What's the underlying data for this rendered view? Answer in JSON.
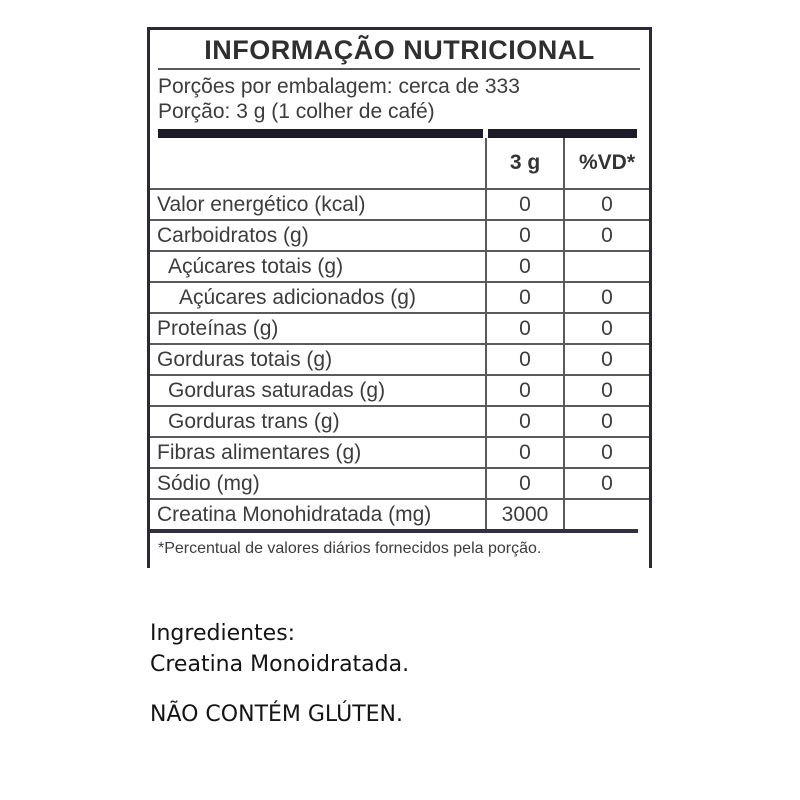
{
  "nutrition_table": {
    "title": "INFORMAÇÃO NUTRICIONAL",
    "servings_per_package": "Porções por embalagem: cerca de 333",
    "portion": "Porção: 3 g (1 colher de café)",
    "columns": {
      "amount_header": "3 g",
      "dv_header": "%VD*"
    },
    "rows": [
      {
        "label": "Valor energético (kcal)",
        "amount": "0",
        "dv": "0",
        "indent": 0
      },
      {
        "label": "Carboidratos (g)",
        "amount": "0",
        "dv": "0",
        "indent": 0
      },
      {
        "label": "Açúcares totais (g)",
        "amount": "0",
        "dv": "",
        "indent": 1
      },
      {
        "label": "Açúcares adicionados (g)",
        "amount": "0",
        "dv": "0",
        "indent": 2
      },
      {
        "label": "Proteínas (g)",
        "amount": "0",
        "dv": "0",
        "indent": 0
      },
      {
        "label": "Gorduras totais (g)",
        "amount": "0",
        "dv": "0",
        "indent": 0
      },
      {
        "label": "Gorduras saturadas (g)",
        "amount": "0",
        "dv": "0",
        "indent": 1
      },
      {
        "label": "Gorduras trans (g)",
        "amount": "0",
        "dv": "0",
        "indent": 1
      },
      {
        "label": "Fibras alimentares (g)",
        "amount": "0",
        "dv": "0",
        "indent": 0
      },
      {
        "label": "Sódio (mg)",
        "amount": "0",
        "dv": "0",
        "indent": 0
      },
      {
        "label": "Creatina Monohidratada (mg)",
        "amount": "3000",
        "dv": "",
        "indent": 0
      }
    ],
    "footnote": "*Percentual de valores diários fornecidos pela porção."
  },
  "info": {
    "ingredients_heading": "Ingredientes:",
    "ingredients_value": "Creatina Monoidratada.",
    "gluten_notice": "NÃO CONTÉM GLÚTEN."
  },
  "colors": {
    "border": "#2b2838",
    "thick_bar": "#1d1b29",
    "rule": "#5a5a5a",
    "text": "#3c3c3c"
  }
}
